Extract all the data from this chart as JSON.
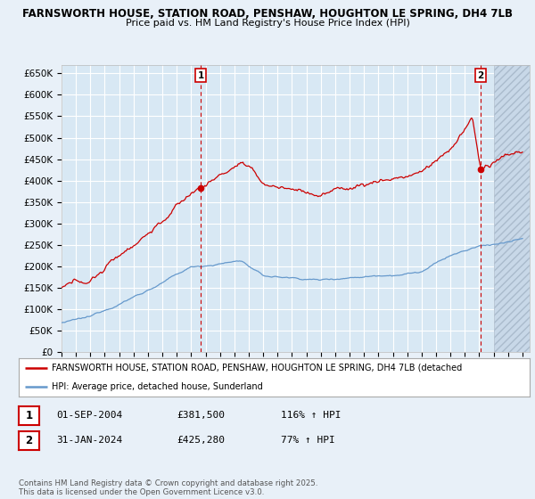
{
  "title1": "FARNSWORTH HOUSE, STATION ROAD, PENSHAW, HOUGHTON LE SPRING, DH4 7LB",
  "title2": "Price paid vs. HM Land Registry's House Price Index (HPI)",
  "ylabel_ticks": [
    "£0",
    "£50K",
    "£100K",
    "£150K",
    "£200K",
    "£250K",
    "£300K",
    "£350K",
    "£400K",
    "£450K",
    "£500K",
    "£550K",
    "£600K",
    "£650K"
  ],
  "ytick_values": [
    0,
    50000,
    100000,
    150000,
    200000,
    250000,
    300000,
    350000,
    400000,
    450000,
    500000,
    550000,
    600000,
    650000
  ],
  "xlim_start": 1995.0,
  "xlim_end": 2027.5,
  "ylim_min": 0,
  "ylim_max": 670000,
  "sale1_year": 2004.67,
  "sale1_price": 381500,
  "sale1_label": "1",
  "sale2_year": 2024.08,
  "sale2_price": 425280,
  "sale2_label": "2",
  "hpi_color": "#6699cc",
  "price_color": "#cc0000",
  "dashed_color": "#cc0000",
  "bg_color": "#e8f0f8",
  "plot_bg_color": "#d8e8f4",
  "grid_color": "#ffffff",
  "legend_label1": "FARNSWORTH HOUSE, STATION ROAD, PENSHAW, HOUGHTON LE SPRING, DH4 7LB (detached",
  "legend_label2": "HPI: Average price, detached house, Sunderland",
  "table_row1": [
    "1",
    "01-SEP-2004",
    "£381,500",
    "116% ↑ HPI"
  ],
  "table_row2": [
    "2",
    "31-JAN-2024",
    "£425,280",
    "77% ↑ HPI"
  ],
  "footnote": "Contains HM Land Registry data © Crown copyright and database right 2025.\nThis data is licensed under the Open Government Licence v3.0.",
  "hatched_end_start": 2025.0,
  "hatched_end_end": 2027.5
}
